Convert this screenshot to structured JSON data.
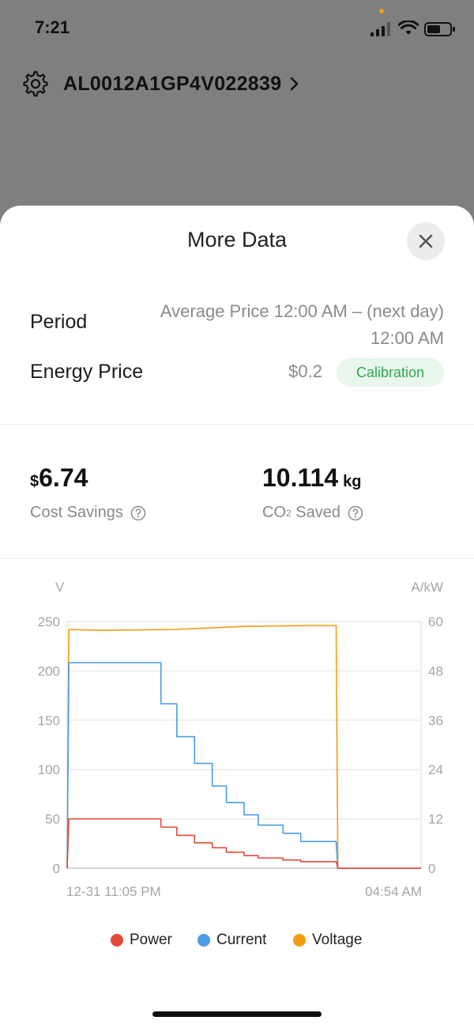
{
  "status_bar": {
    "time": "7:21"
  },
  "device": {
    "id": "AL0012A1GP4V022839"
  },
  "sheet": {
    "title": "More Data",
    "period_label": "Period",
    "period_value_line1": "Average Price 12:00 AM – (next day)",
    "period_value_line2": "12:00 AM",
    "energy_price_label": "Energy Price",
    "energy_price_value": "$0.2",
    "calibration_label": "Calibration"
  },
  "stats": {
    "cost_symbol": "$",
    "cost_value": "6.74",
    "cost_label": "Cost Savings",
    "co2_value": "10.114",
    "co2_unit": "kg",
    "co2_label_prefix": "CO",
    "co2_label_sub": "2",
    "co2_label_suffix": " Saved"
  },
  "chart_data": {
    "type": "line",
    "y_left_label": "V",
    "y_right_label": "A/kW",
    "y_left_ticks": [
      "250",
      "200",
      "150",
      "100",
      "50",
      "0"
    ],
    "y_right_ticks": [
      "60",
      "48",
      "36",
      "24",
      "12",
      "0"
    ],
    "ylim_left": [
      0,
      250
    ],
    "ylim_right": [
      0,
      60
    ],
    "x_tick_labels": [
      "12-31 11:05 PM",
      "04:54 AM"
    ],
    "grid": true,
    "legend_position": "bottom",
    "x_normalized_note": "time fraction of span from 11:05 PM to 04:54 AM",
    "series": [
      {
        "name": "Voltage",
        "color": "#f39c12",
        "axis": "left",
        "points": [
          [
            0.0,
            0
          ],
          [
            0.005,
            242
          ],
          [
            0.1,
            241
          ],
          [
            0.3,
            242
          ],
          [
            0.5,
            245
          ],
          [
            0.7,
            246
          ],
          [
            0.76,
            246
          ],
          [
            0.765,
            0
          ],
          [
            1.0,
            0
          ]
        ]
      },
      {
        "name": "Current",
        "color": "#4a9be8",
        "axis": "right",
        "points": [
          [
            0.0,
            0
          ],
          [
            0.005,
            50
          ],
          [
            0.265,
            50
          ],
          [
            0.265,
            40
          ],
          [
            0.31,
            40
          ],
          [
            0.31,
            32
          ],
          [
            0.36,
            32
          ],
          [
            0.36,
            25.5
          ],
          [
            0.41,
            25.5
          ],
          [
            0.41,
            20
          ],
          [
            0.45,
            20
          ],
          [
            0.45,
            16
          ],
          [
            0.5,
            16
          ],
          [
            0.5,
            13
          ],
          [
            0.54,
            13
          ],
          [
            0.54,
            10.5
          ],
          [
            0.61,
            10.5
          ],
          [
            0.61,
            8.5
          ],
          [
            0.66,
            8.5
          ],
          [
            0.66,
            6.5
          ],
          [
            0.76,
            6.5
          ],
          [
            0.765,
            0
          ],
          [
            1.0,
            0
          ]
        ]
      },
      {
        "name": "Power",
        "color": "#e5483a",
        "axis": "right",
        "points": [
          [
            0.0,
            0
          ],
          [
            0.005,
            12
          ],
          [
            0.265,
            12
          ],
          [
            0.265,
            10
          ],
          [
            0.31,
            10
          ],
          [
            0.31,
            8
          ],
          [
            0.36,
            8
          ],
          [
            0.36,
            6.2
          ],
          [
            0.41,
            6.2
          ],
          [
            0.41,
            5
          ],
          [
            0.45,
            5
          ],
          [
            0.45,
            3.9
          ],
          [
            0.5,
            3.9
          ],
          [
            0.5,
            3.1
          ],
          [
            0.54,
            3.1
          ],
          [
            0.54,
            2.5
          ],
          [
            0.61,
            2.5
          ],
          [
            0.61,
            2.0
          ],
          [
            0.66,
            2.0
          ],
          [
            0.66,
            1.6
          ],
          [
            0.76,
            1.6
          ],
          [
            0.765,
            0
          ],
          [
            1.0,
            0
          ]
        ]
      }
    ]
  },
  "legend": {
    "power": "Power",
    "current": "Current",
    "voltage": "Voltage"
  },
  "colors": {
    "power": "#e5483a",
    "current": "#4a9be8",
    "voltage": "#f39c12",
    "calibration_text": "#2fa84f"
  }
}
